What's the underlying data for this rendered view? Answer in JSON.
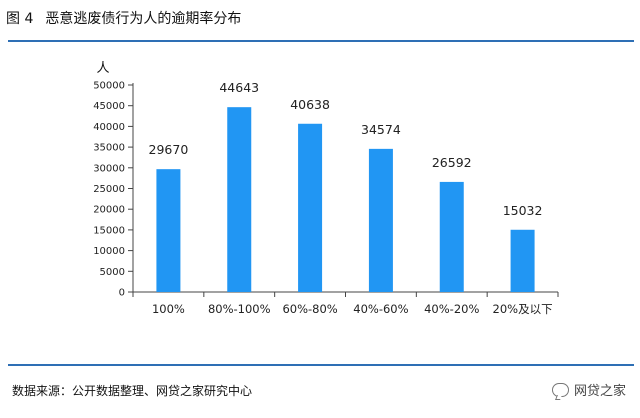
{
  "figure": {
    "number": "图 4",
    "title": "恶意逃废债行为人的逾期率分布"
  },
  "source_text": "数据来源：公开数据整理、网贷之家研究中心",
  "watermark": {
    "icon": "wechat-icon",
    "text": "网贷之家"
  },
  "colors": {
    "bar": "#2196F3",
    "rule": "#2e6fb5",
    "axis": "#444444"
  },
  "chart_data": {
    "type": "bar",
    "title": "恶意逃废债行为人的逾期率分布",
    "xlabel": "",
    "ylabel": "人",
    "ylim": [
      0,
      50000
    ],
    "ytick_step": 5000,
    "grid": false,
    "legend": "none",
    "categories": [
      "100%",
      "80%-100%",
      "60%-80%",
      "40%-60%",
      "40%-20%",
      "20%及以下"
    ],
    "values": [
      29670,
      44643,
      40638,
      34574,
      26592,
      15032
    ]
  }
}
